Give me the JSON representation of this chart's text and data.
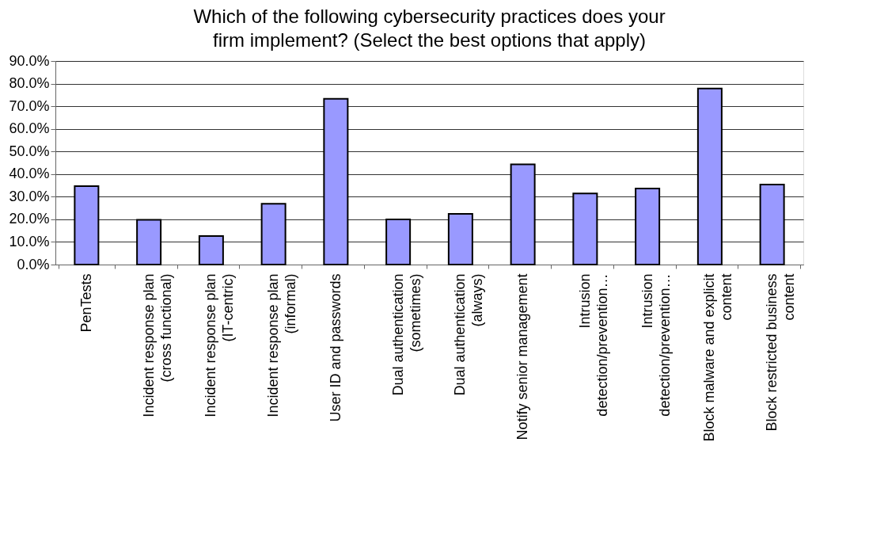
{
  "chart_data": {
    "type": "bar",
    "title": "Which of the following cybersecurity practices does your firm implement? (Select the best options that apply)",
    "categories": [
      "PenTests",
      "Incident response plan (cross functional)",
      "Incident response plan (IT-centric)",
      "Incident response plan (informal)",
      "User ID and passwords",
      "Dual authentication (sometimes)",
      "Dual authentication (always)",
      "Notify senior management",
      "Intrusion detection/prevention…",
      "Intrusion detection/prevention…",
      "Block malware and explicit content",
      "Block restricted business content"
    ],
    "values": [
      34.7,
      19.8,
      12.6,
      26.9,
      73.3,
      20.0,
      22.4,
      44.3,
      31.4,
      33.6,
      77.8,
      35.4
    ],
    "color": "#9999ff",
    "ylim": [
      0,
      90
    ],
    "yticks": [
      {
        "value": 0,
        "label": "0.0%"
      },
      {
        "value": 10,
        "label": "10.0%"
      },
      {
        "value": 20,
        "label": "20.0%"
      },
      {
        "value": 30,
        "label": "30.0%"
      },
      {
        "value": 40,
        "label": "40.0%"
      },
      {
        "value": 50,
        "label": "50.0%"
      },
      {
        "value": 60,
        "label": "60.0%"
      },
      {
        "value": 70,
        "label": "70.0%"
      },
      {
        "value": 80,
        "label": "80.0%"
      },
      {
        "value": 90,
        "label": "90.0%"
      }
    ],
    "grid": "y"
  }
}
